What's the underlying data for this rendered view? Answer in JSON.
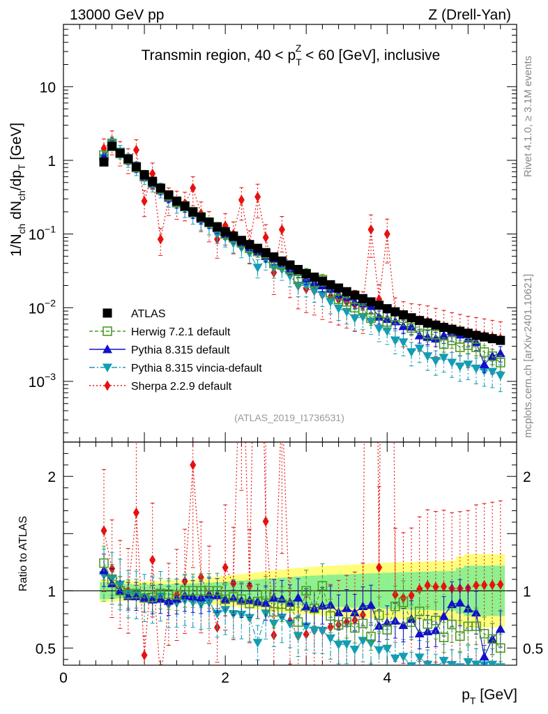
{
  "header": {
    "left": "13000 GeV pp",
    "right": "Z (Drell-Yan)"
  },
  "side_text": {
    "rivet": "Rivet 4.1.0, ≥ 3.1M events",
    "mcplots": "mcplots.cern.ch [arXiv:2401.10621]"
  },
  "chart_data": {
    "type": "scatter",
    "title": "Transmin region, 40 < p_T^Z < 60 [GeV], inclusive",
    "title_parts": {
      "pre": "Transmin region, 40 < p",
      "sup": "Z",
      "sub": "T",
      "post": " < 60 [GeV], inclusive"
    },
    "watermark": "(ATLAS_2019_I1736531)",
    "xlabel": "p_T [GeV]",
    "xlabel_parts": {
      "main": "p",
      "sub": "T",
      "post": " [GeV]"
    },
    "ylabel": "1/N_ch dN_ch/dp_T [GeV]",
    "ylabel_parts": {
      "a": "1/N",
      "a_sub": "ch",
      "b": " dN",
      "b_sub": "ch",
      "c": "/dp",
      "c_sub": "T",
      "d": " [GeV]"
    },
    "ratio_ylabel": "Ratio to ATLAS",
    "xlim": [
      0,
      5.6
    ],
    "ylim_main": [
      0.00015,
      70
    ],
    "ylim_ratio": [
      0.35,
      2.3
    ],
    "x_ticks": [
      "0",
      "2",
      "4"
    ],
    "y_ticks_main": [
      {
        "base": "10",
        "exp": "−3"
      },
      {
        "base": "10",
        "exp": "−2"
      },
      {
        "base": "10",
        "exp": "−1"
      },
      {
        "base": "1",
        "exp": ""
      },
      {
        "base": "10",
        "exp": ""
      }
    ],
    "y_ticks_ratio": [
      "0.5",
      "1",
      "2"
    ],
    "legend_entries": [
      "ATLAS",
      "Herwig 7.2.1 default",
      "Pythia 8.315 default",
      "Pythia 8.315 vincia-default",
      "Sherpa 2.2.9 default"
    ],
    "x": [
      0.5,
      0.6,
      0.7,
      0.8,
      0.9,
      1.0,
      1.1,
      1.2,
      1.3,
      1.4,
      1.5,
      1.6,
      1.7,
      1.8,
      1.9,
      2.0,
      2.1,
      2.2,
      2.3,
      2.4,
      2.5,
      2.6,
      2.7,
      2.8,
      2.9,
      3.0,
      3.1,
      3.2,
      3.3,
      3.4,
      3.5,
      3.6,
      3.7,
      3.8,
      3.9,
      4.0,
      4.1,
      4.2,
      4.3,
      4.4,
      4.5,
      4.6,
      4.7,
      4.8,
      4.9,
      5.0,
      5.1,
      5.2,
      5.3,
      5.4
    ],
    "series": [
      {
        "name": "ATLAS",
        "color": "#000000",
        "values": [
          0.95,
          1.55,
          1.25,
          1.05,
          0.82,
          0.64,
          0.52,
          0.42,
          0.34,
          0.28,
          0.24,
          0.2,
          0.17,
          0.145,
          0.125,
          0.108,
          0.094,
          0.082,
          0.072,
          0.064,
          0.056,
          0.049,
          0.043,
          0.038,
          0.033,
          0.029,
          0.026,
          0.023,
          0.0205,
          0.0185,
          0.0165,
          0.0148,
          0.0133,
          0.012,
          0.0108,
          0.0097,
          0.0088,
          0.008,
          0.0073,
          0.0067,
          0.0062,
          0.0058,
          0.0054,
          0.0051,
          0.0048,
          0.0045,
          0.0042,
          0.004,
          0.0038,
          0.0036
        ]
      },
      {
        "name": "Herwig 7.2.1 default",
        "color": "#4a9a26",
        "values": [
          1.18,
          1.7,
          1.25,
          1.02,
          0.8,
          0.6,
          0.49,
          0.41,
          0.33,
          0.27,
          0.24,
          0.2,
          0.17,
          0.145,
          0.125,
          0.1,
          0.089,
          0.076,
          0.064,
          0.058,
          0.054,
          0.04,
          0.038,
          0.033,
          0.024,
          0.029,
          0.022,
          0.024,
          0.016,
          0.013,
          0.012,
          0.01,
          0.0095,
          0.0072,
          0.0085,
          0.0064,
          0.0076,
          0.0072,
          0.0053,
          0.0055,
          0.0044,
          0.0043,
          0.0032,
          0.0036,
          0.0029,
          0.0031,
          0.0029,
          0.0025,
          0.0022,
          0.0018
        ]
      },
      {
        "name": "Pythia 8.315 default",
        "color": "#1010cc",
        "values": [
          1.12,
          1.65,
          1.25,
          1.0,
          0.78,
          0.6,
          0.48,
          0.39,
          0.31,
          0.26,
          0.23,
          0.19,
          0.16,
          0.14,
          0.12,
          0.1,
          0.088,
          0.075,
          0.066,
          0.058,
          0.05,
          0.046,
          0.04,
          0.034,
          0.031,
          0.025,
          0.022,
          0.02,
          0.018,
          0.015,
          0.014,
          0.012,
          0.0115,
          0.0105,
          0.0075,
          0.007,
          0.0065,
          0.0056,
          0.0055,
          0.0042,
          0.004,
          0.0038,
          0.0042,
          0.0045,
          0.0043,
          0.0038,
          0.0034,
          0.0017,
          0.0022,
          0.0024
        ]
      },
      {
        "name": "Pythia 8.315 vincia-default",
        "color": "#139db5",
        "values": [
          1.08,
          1.72,
          1.32,
          1.02,
          0.79,
          0.6,
          0.48,
          0.4,
          0.3,
          0.25,
          0.22,
          0.18,
          0.15,
          0.13,
          0.1,
          0.09,
          0.075,
          0.065,
          0.055,
          0.035,
          0.045,
          0.035,
          0.033,
          0.027,
          0.02,
          0.02,
          0.017,
          0.015,
          0.012,
          0.0098,
          0.0088,
          0.0072,
          0.0075,
          0.0065,
          0.0052,
          0.0048,
          0.0036,
          0.0034,
          0.0025,
          0.0028,
          0.0022,
          0.0019,
          0.0021,
          0.0018,
          0.0016,
          0.0017,
          0.0015,
          0.0014,
          0.00135,
          0.0012
        ]
      },
      {
        "name": "Sherpa 2.2.9 default",
        "color": "#e8110f",
        "values": [
          1.45,
          1.85,
          1.32,
          1.05,
          1.38,
          0.28,
          0.66,
          0.085,
          0.3,
          0.27,
          0.26,
          0.42,
          0.19,
          0.14,
          0.085,
          0.13,
          0.1,
          0.29,
          0.075,
          0.32,
          0.09,
          0.03,
          0.115,
          0.028,
          0.02,
          0.018,
          0.017,
          0.015,
          0.014,
          0.013,
          0.012,
          0.011,
          0.0105,
          0.115,
          0.013,
          0.1,
          0.0085,
          0.0075,
          0.007,
          0.0068,
          0.0065,
          0.006,
          0.0056,
          0.0052,
          0.0049,
          0.0046,
          0.0044,
          0.0042,
          0.004,
          0.0038
        ]
      }
    ],
    "ratio_band": {
      "inner_color": "#8ef08e",
      "outer_color": "#fefe7a",
      "inner": [
        0.075,
        0.07,
        0.065,
        0.06,
        0.058,
        0.056,
        0.055,
        0.056,
        0.058,
        0.06,
        0.062,
        0.065,
        0.068,
        0.072,
        0.076,
        0.08,
        0.085,
        0.09,
        0.095,
        0.1,
        0.105,
        0.11,
        0.115,
        0.12,
        0.125,
        0.13,
        0.133,
        0.136,
        0.14,
        0.142,
        0.145,
        0.148,
        0.15,
        0.152,
        0.155,
        0.158,
        0.16,
        0.162,
        0.164,
        0.166,
        0.168,
        0.17,
        0.172,
        0.174,
        0.2,
        0.22,
        0.22,
        0.22,
        0.22,
        0.22
      ],
      "outer": [
        0.1,
        0.095,
        0.09,
        0.085,
        0.083,
        0.082,
        0.082,
        0.085,
        0.088,
        0.092,
        0.097,
        0.102,
        0.108,
        0.115,
        0.122,
        0.13,
        0.138,
        0.146,
        0.154,
        0.162,
        0.17,
        0.178,
        0.186,
        0.194,
        0.2,
        0.205,
        0.21,
        0.215,
        0.218,
        0.222,
        0.226,
        0.23,
        0.234,
        0.238,
        0.242,
        0.245,
        0.248,
        0.25,
        0.252,
        0.254,
        0.256,
        0.258,
        0.26,
        0.262,
        0.3,
        0.32,
        0.32,
        0.32,
        0.32,
        0.32
      ]
    }
  }
}
